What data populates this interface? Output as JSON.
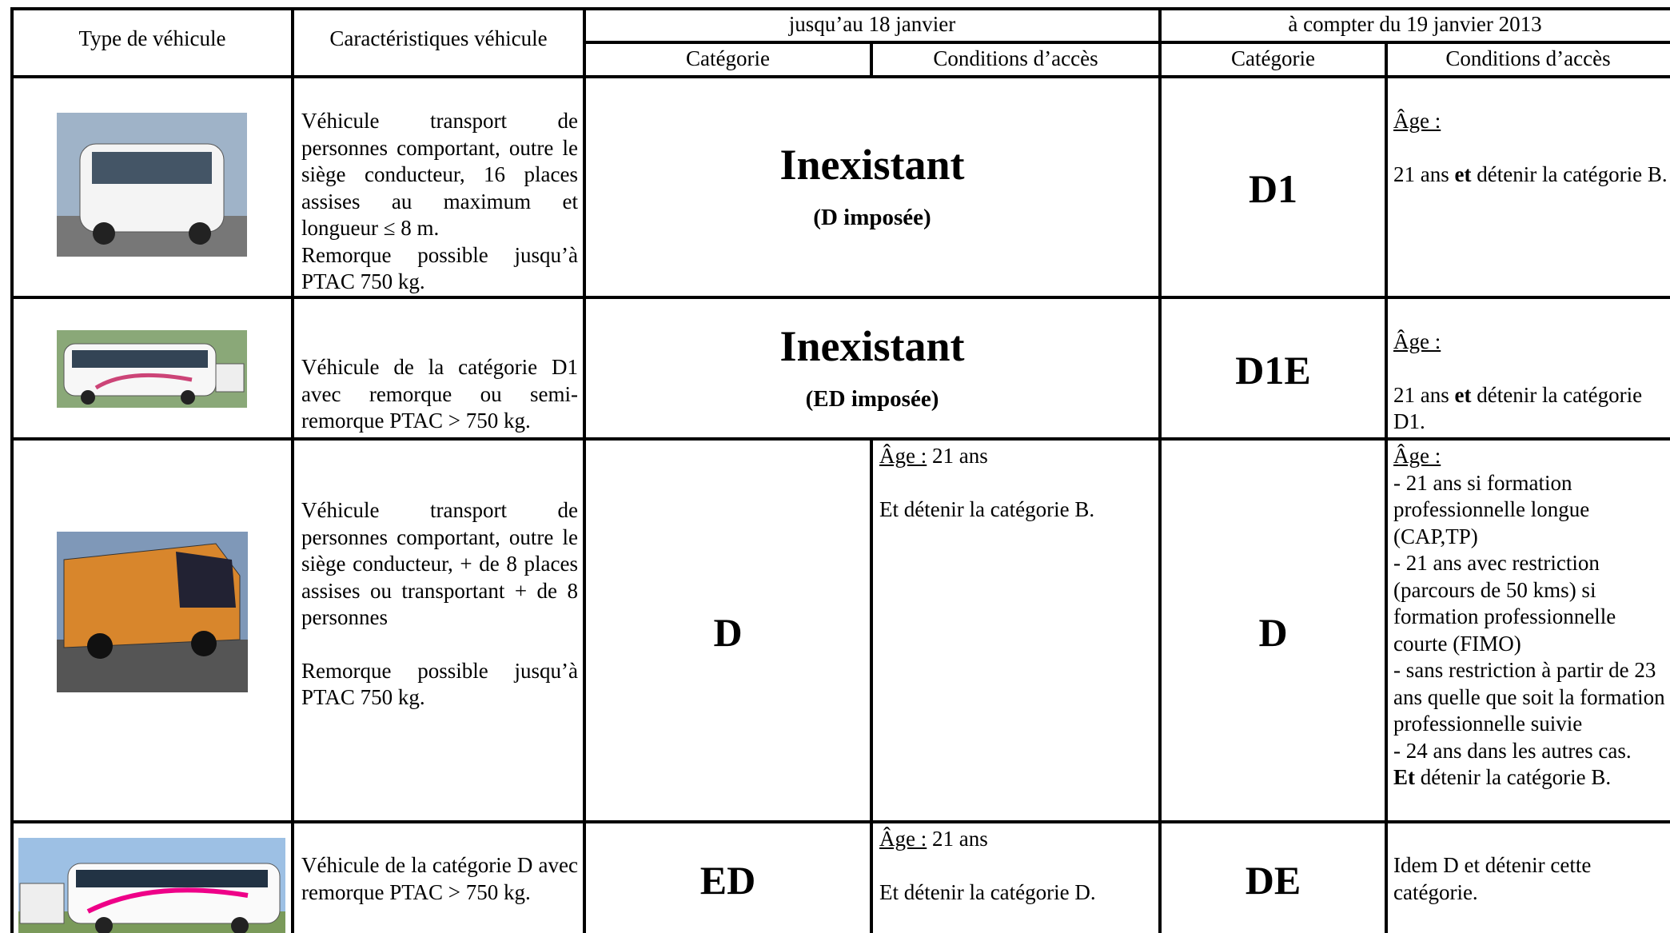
{
  "header": {
    "type": "Type de véhicule",
    "characteristics": "Caractéristiques véhicule",
    "until": "jusqu’au 18 janvier",
    "from": "à compter du 19 janvier 2013",
    "category_old": "Catégorie",
    "conditions_old": "Conditions d’accès",
    "category_new": "Catégorie",
    "conditions_new": "Conditions d’accès"
  },
  "rows": [
    {
      "characteristics": [
        "Véhicule transport de personnes comportant, outre le siège conducteur, 16 places assises au maximum et longueur ≤ 8 m.",
        "Remorque possible jusqu’à PTAC 750 kg."
      ],
      "old": {
        "status": "Inexistant",
        "note": "(D imposée)"
      },
      "new": {
        "category": "D1",
        "age_label": "Âge :",
        "conditions": [
          "21 ans ",
          "et",
          " détenir la catégorie B."
        ]
      }
    },
    {
      "characteristics": [
        "Véhicule de la catégorie D1 avec remorque ou semi-remorque PTAC > 750 kg."
      ],
      "old": {
        "status": "Inexistant",
        "note": "(ED imposée)"
      },
      "new": {
        "category": "D1E",
        "age_label": "Âge :",
        "conditions": [
          "21 ans ",
          "et",
          " détenir la catégorie D1."
        ]
      }
    },
    {
      "characteristics": [
        "Véhicule transport de personnes comportant, outre le siège conducteur, + de 8 places assises ou transportant + de 8 personnes",
        "Remorque possible jusqu’à PTAC 750 kg."
      ],
      "old": {
        "category": "D",
        "age_label": "Âge :",
        "age": " 21 ans",
        "conditions": "Et détenir la catégorie B."
      },
      "new": {
        "category": "D",
        "age_label": "Âge :",
        "conditions": [
          "- 21 ans si formation professionnelle longue (CAP,TP)",
          "- 21 ans avec restriction (parcours de 50 kms) si formation professionnelle courte (FIMO)",
          "- sans restriction à partir de 23 ans quelle que soit la formation professionnelle suivie",
          "- 24 ans dans les autres cas.",
          "Et",
          " détenir la catégorie B."
        ]
      }
    },
    {
      "characteristics": [
        "Véhicule de la catégorie D avec remorque PTAC > 750 kg."
      ],
      "old": {
        "category": "ED",
        "age_label": "Âge :",
        "age": " 21 ans",
        "conditions": "Et détenir la catégorie D."
      },
      "new": {
        "category": "DE",
        "conditions": [
          "Idem D et détenir cette catégorie."
        ]
      }
    }
  ]
}
